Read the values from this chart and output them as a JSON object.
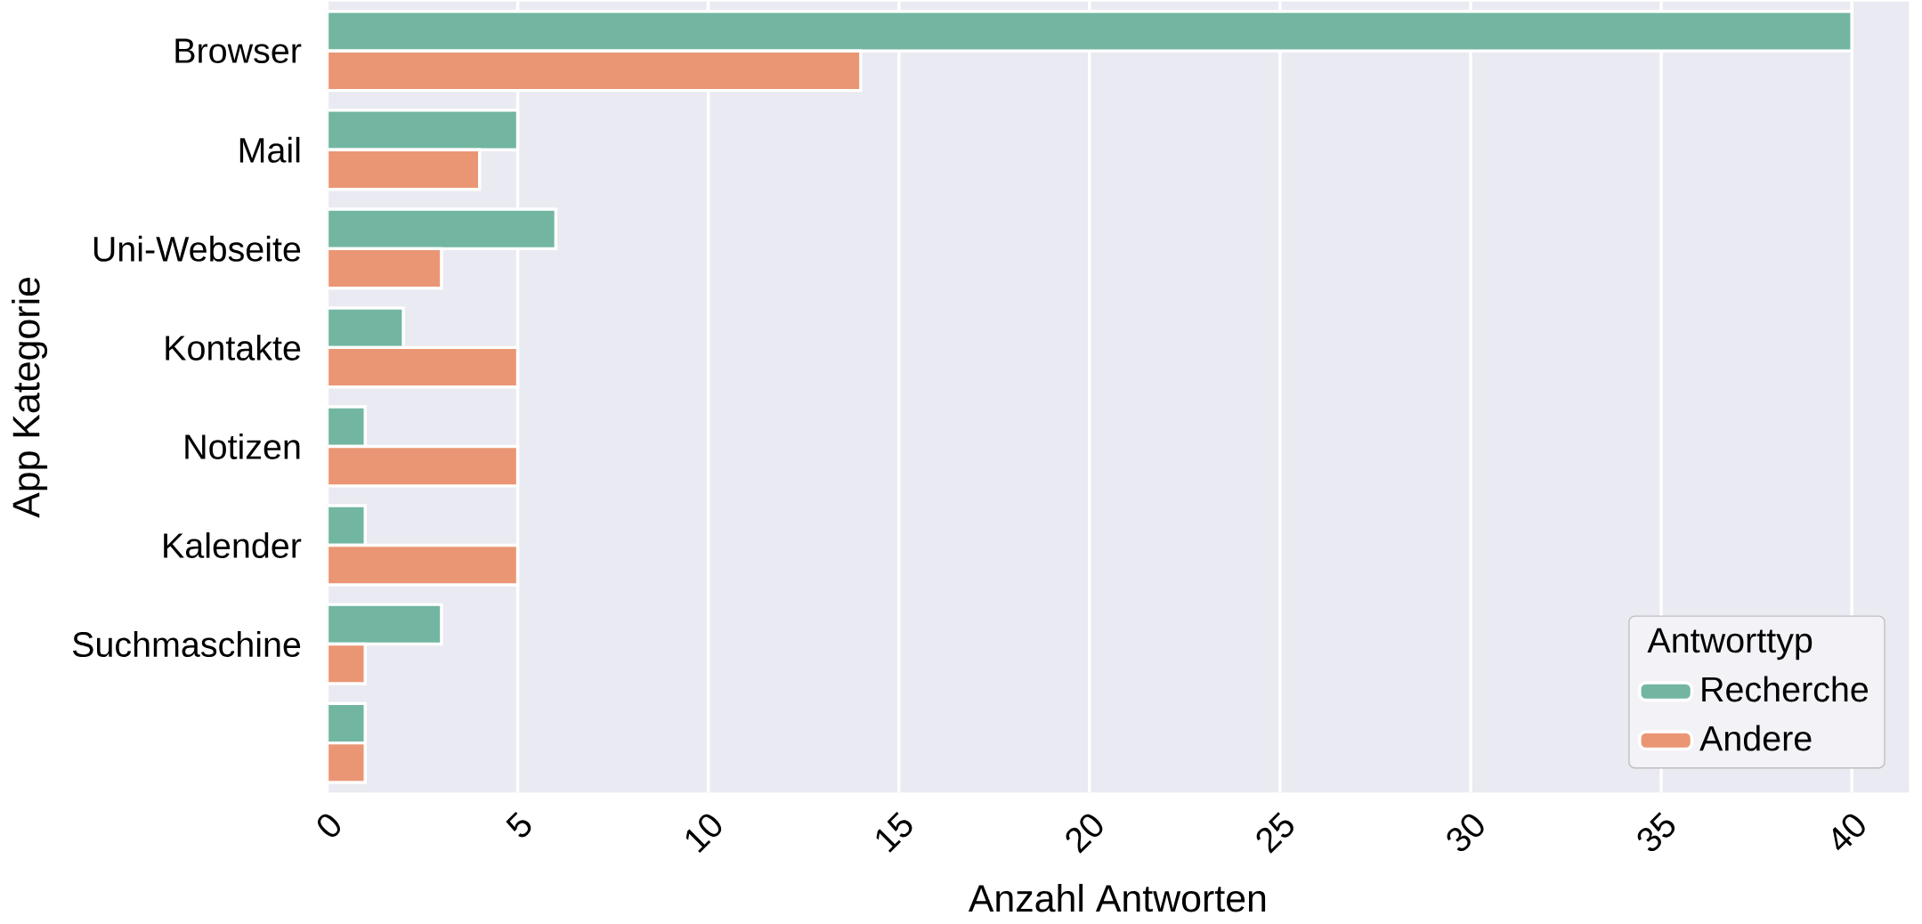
{
  "chart_data": {
    "type": "bar",
    "orientation": "horizontal",
    "xlabel": "Anzahl Antworten",
    "ylabel": "App Kategorie",
    "legend_title": "Antworttyp",
    "categories": [
      "Browser",
      "Mail",
      "Uni-Webseite",
      "Kontakte",
      "Notizen",
      "Kalender",
      "Suchmaschine",
      null
    ],
    "series": [
      {
        "name": "Recherche",
        "color": "#72b6a1",
        "values": [
          40,
          5,
          6,
          2,
          1,
          1,
          3,
          1
        ]
      },
      {
        "name": "Andere",
        "color": "#ea9674",
        "values": [
          14,
          4,
          3,
          5,
          5,
          5,
          1,
          1
        ]
      }
    ],
    "xlim": [
      0,
      41.5
    ],
    "xticks": [
      0,
      5,
      10,
      15,
      20,
      25,
      30,
      35,
      40
    ],
    "grid": "x",
    "legend": "bottom right"
  }
}
